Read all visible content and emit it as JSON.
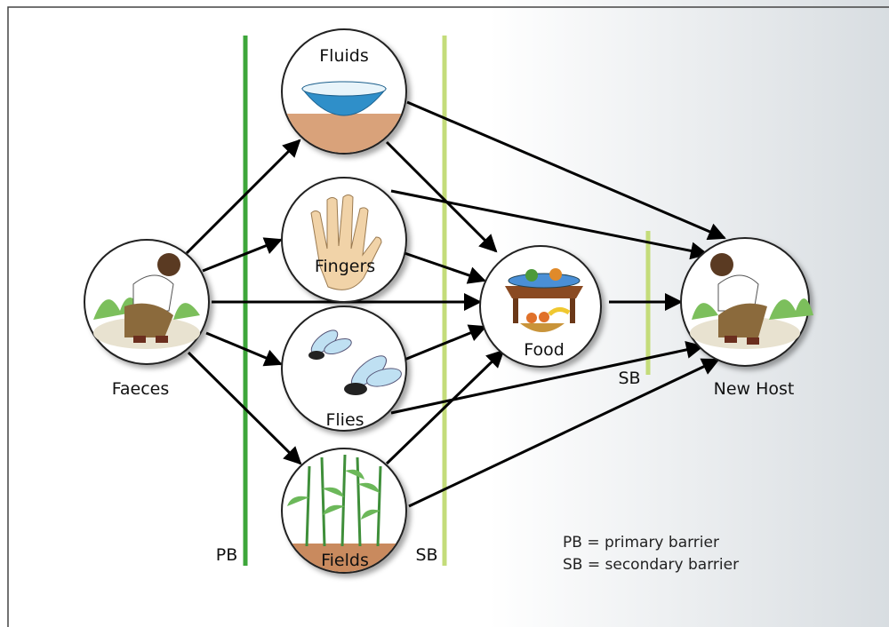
{
  "nodes": [
    {
      "label": "Faeces"
    },
    {
      "label": "Fluids"
    },
    {
      "label": "Fingers"
    },
    {
      "label": "Flies"
    },
    {
      "label": "Fields"
    },
    {
      "label": "Food"
    },
    {
      "label": "New Host"
    }
  ],
  "barriers": [
    {
      "label": "PB"
    },
    {
      "label": "SB"
    },
    {
      "label": "SB"
    }
  ],
  "legend": [
    "PB = primary barrier",
    "SB = secondary barrier"
  ]
}
